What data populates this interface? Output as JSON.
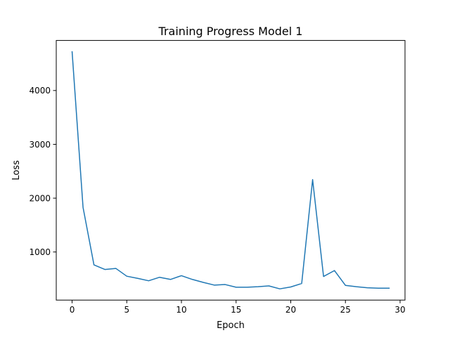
{
  "chart_data": {
    "type": "line",
    "title": "Training Progress Model 1",
    "xlabel": "Epoch",
    "ylabel": "Loss",
    "xlim": [
      -1.45,
      30.45
    ],
    "ylim": [
      106,
      4930
    ],
    "xticks": [
      0,
      5,
      10,
      15,
      20,
      25,
      30
    ],
    "yticks": [
      1000,
      2000,
      3000,
      4000
    ],
    "grid": false,
    "legend": "none",
    "series": [
      {
        "color": "#1f77b4",
        "x": [
          0,
          1,
          2,
          3,
          4,
          5,
          6,
          7,
          8,
          9,
          10,
          11,
          12,
          13,
          14,
          15,
          16,
          17,
          18,
          19,
          20,
          21,
          22,
          23,
          24,
          25,
          26,
          27,
          28,
          29
        ],
        "y": [
          4720,
          1830,
          760,
          675,
          695,
          550,
          510,
          465,
          530,
          490,
          560,
          490,
          435,
          385,
          395,
          345,
          345,
          355,
          370,
          315,
          350,
          415,
          2345,
          545,
          655,
          380,
          355,
          335,
          328,
          328
        ]
      }
    ]
  }
}
